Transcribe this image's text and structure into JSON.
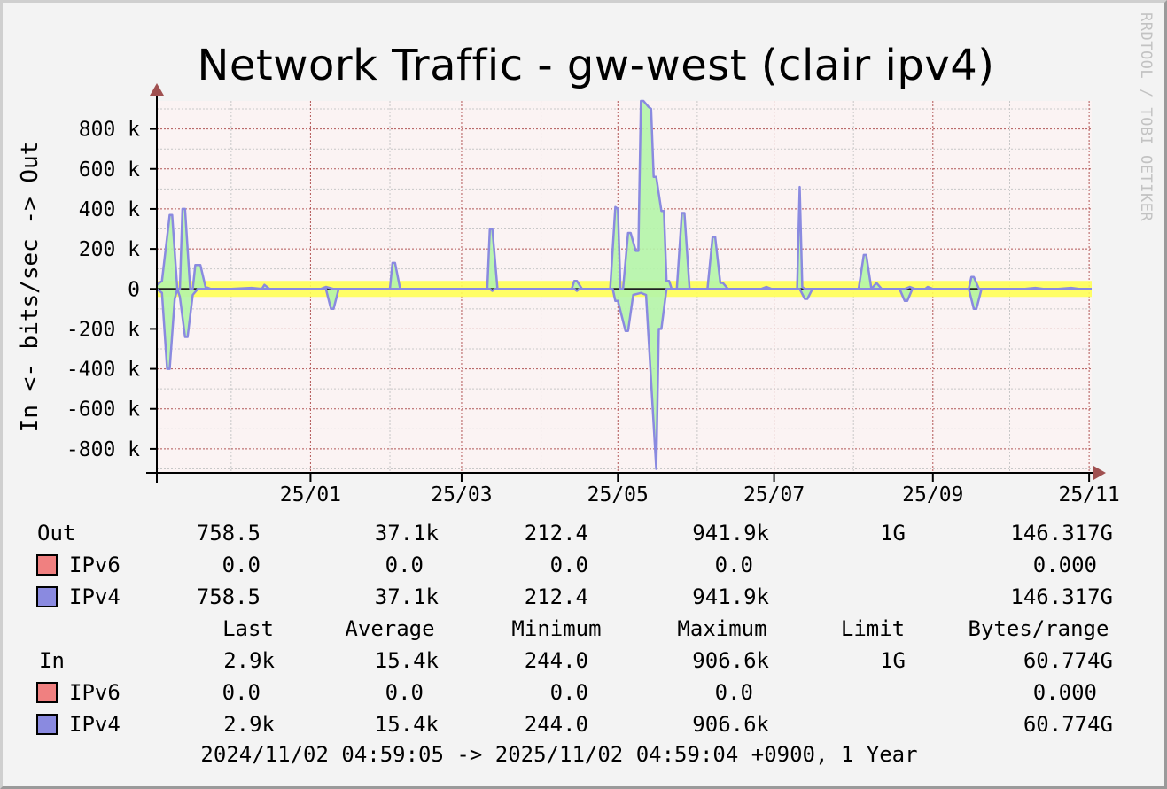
{
  "chart_data": {
    "type": "area",
    "title": "Network Traffic - gw-west (clair ipv4)",
    "ylabel": "In <- bits/sec -> Out",
    "ylim": [
      -920000,
      940000
    ],
    "y_ticks": [
      {
        "value": 800000,
        "label": "800 k"
      },
      {
        "value": 600000,
        "label": "600 k"
      },
      {
        "value": 400000,
        "label": "400 k"
      },
      {
        "value": 200000,
        "label": "200 k"
      },
      {
        "value": 0,
        "label": "0"
      },
      {
        "value": -200000,
        "label": "-200 k"
      },
      {
        "value": -400000,
        "label": "-400 k"
      },
      {
        "value": -600000,
        "label": "-600 k"
      },
      {
        "value": -800000,
        "label": "-800 k"
      }
    ],
    "x_range": [
      "2024-11-02",
      "2025-11-02"
    ],
    "x_ticks": [
      {
        "date": "2025-01-01",
        "label": "25/01"
      },
      {
        "date": "2025-03-01",
        "label": "25/03"
      },
      {
        "date": "2025-05-01",
        "label": "25/05"
      },
      {
        "date": "2025-07-01",
        "label": "25/07"
      },
      {
        "date": "2025-09-01",
        "label": "25/09"
      },
      {
        "date": "2025-11-01",
        "label": "25/11"
      }
    ],
    "grid": true,
    "limit_band": 40000,
    "series": [
      {
        "name": "IPv4",
        "color": "#8a8ae0",
        "fill": "#b4f5a8",
        "out": [
          [
            "2024-11-02",
            20000
          ],
          [
            "2024-11-04",
            40000
          ],
          [
            "2024-11-07",
            370000
          ],
          [
            "2024-11-08",
            370000
          ],
          [
            "2024-11-10",
            0
          ],
          [
            "2024-11-11",
            0
          ],
          [
            "2024-11-12",
            400000
          ],
          [
            "2024-11-13",
            400000
          ],
          [
            "2024-11-15",
            0
          ],
          [
            "2024-11-16",
            0
          ],
          [
            "2024-11-17",
            120000
          ],
          [
            "2024-11-19",
            120000
          ],
          [
            "2024-11-21",
            10000
          ],
          [
            "2024-11-23",
            0
          ],
          [
            "2024-12-01",
            0
          ],
          [
            "2024-12-09",
            5000
          ],
          [
            "2024-12-13",
            0
          ],
          [
            "2024-12-14",
            20000
          ],
          [
            "2024-12-16",
            0
          ],
          [
            "2025-01-02",
            0
          ],
          [
            "2025-01-05",
            0
          ],
          [
            "2025-01-07",
            10000
          ],
          [
            "2025-01-10",
            0
          ],
          [
            "2025-02-01",
            0
          ],
          [
            "2025-02-02",
            130000
          ],
          [
            "2025-02-03",
            130000
          ],
          [
            "2025-02-05",
            0
          ],
          [
            "2025-03-01",
            0
          ],
          [
            "2025-03-11",
            0
          ],
          [
            "2025-03-12",
            300000
          ],
          [
            "2025-03-13",
            300000
          ],
          [
            "2025-03-15",
            0
          ],
          [
            "2025-04-13",
            0
          ],
          [
            "2025-04-14",
            40000
          ],
          [
            "2025-04-15",
            40000
          ],
          [
            "2025-04-17",
            0
          ],
          [
            "2025-04-28",
            0
          ],
          [
            "2025-04-30",
            410000
          ],
          [
            "2025-05-01",
            400000
          ],
          [
            "2025-05-02",
            0
          ],
          [
            "2025-05-03",
            0
          ],
          [
            "2025-05-05",
            280000
          ],
          [
            "2025-05-06",
            280000
          ],
          [
            "2025-05-08",
            190000
          ],
          [
            "2025-05-09",
            190000
          ],
          [
            "2025-05-10",
            940000
          ],
          [
            "2025-05-11",
            940000
          ],
          [
            "2025-05-13",
            910000
          ],
          [
            "2025-05-14",
            900000
          ],
          [
            "2025-05-15",
            560000
          ],
          [
            "2025-05-16",
            560000
          ],
          [
            "2025-05-18",
            390000
          ],
          [
            "2025-05-19",
            390000
          ],
          [
            "2025-05-20",
            40000
          ],
          [
            "2025-05-21",
            40000
          ],
          [
            "2025-05-22",
            0
          ],
          [
            "2025-05-24",
            0
          ],
          [
            "2025-05-26",
            380000
          ],
          [
            "2025-05-27",
            380000
          ],
          [
            "2025-05-29",
            0
          ],
          [
            "2025-06-01",
            0
          ],
          [
            "2025-06-05",
            0
          ],
          [
            "2025-06-07",
            260000
          ],
          [
            "2025-06-08",
            260000
          ],
          [
            "2025-06-10",
            30000
          ],
          [
            "2025-06-11",
            30000
          ],
          [
            "2025-06-13",
            0
          ],
          [
            "2025-06-26",
            0
          ],
          [
            "2025-06-28",
            10000
          ],
          [
            "2025-06-30",
            0
          ],
          [
            "2025-07-10",
            0
          ],
          [
            "2025-07-11",
            510000
          ],
          [
            "2025-07-12",
            10000
          ],
          [
            "2025-07-13",
            0
          ],
          [
            "2025-08-01",
            0
          ],
          [
            "2025-08-03",
            0
          ],
          [
            "2025-08-05",
            170000
          ],
          [
            "2025-08-06",
            170000
          ],
          [
            "2025-08-08",
            0
          ],
          [
            "2025-08-10",
            30000
          ],
          [
            "2025-08-12",
            0
          ],
          [
            "2025-08-21",
            0
          ],
          [
            "2025-08-23",
            10000
          ],
          [
            "2025-08-25",
            0
          ],
          [
            "2025-08-29",
            0
          ],
          [
            "2025-08-30",
            10000
          ],
          [
            "2025-09-01",
            0
          ],
          [
            "2025-09-15",
            0
          ],
          [
            "2025-09-16",
            60000
          ],
          [
            "2025-09-17",
            60000
          ],
          [
            "2025-09-19",
            0
          ],
          [
            "2025-10-02",
            0
          ],
          [
            "2025-10-07",
            0
          ],
          [
            "2025-10-11",
            5000
          ],
          [
            "2025-10-14",
            0
          ],
          [
            "2025-10-20",
            0
          ],
          [
            "2025-10-25",
            5000
          ],
          [
            "2025-10-28",
            0
          ],
          [
            "2025-11-02",
            0
          ]
        ],
        "in": [
          [
            "2024-11-02",
            0
          ],
          [
            "2024-11-04",
            -20000
          ],
          [
            "2024-11-06",
            -400000
          ],
          [
            "2024-11-07",
            -400000
          ],
          [
            "2024-11-09",
            -50000
          ],
          [
            "2024-11-10",
            0
          ],
          [
            "2024-11-11",
            -40000
          ],
          [
            "2024-11-13",
            -240000
          ],
          [
            "2024-11-14",
            -240000
          ],
          [
            "2024-11-16",
            -30000
          ],
          [
            "2024-11-18",
            0
          ],
          [
            "2025-01-07",
            0
          ],
          [
            "2025-01-09",
            -100000
          ],
          [
            "2025-01-10",
            -100000
          ],
          [
            "2025-01-12",
            0
          ],
          [
            "2025-03-12",
            0
          ],
          [
            "2025-03-13",
            -10000
          ],
          [
            "2025-03-14",
            0
          ],
          [
            "2025-04-14",
            0
          ],
          [
            "2025-04-15",
            -10000
          ],
          [
            "2025-04-16",
            0
          ],
          [
            "2025-04-29",
            0
          ],
          [
            "2025-04-30",
            -60000
          ],
          [
            "2025-05-01",
            -60000
          ],
          [
            "2025-05-04",
            -210000
          ],
          [
            "2025-05-05",
            -210000
          ],
          [
            "2025-05-07",
            -30000
          ],
          [
            "2025-05-10",
            -20000
          ],
          [
            "2025-05-12",
            -30000
          ],
          [
            "2025-05-16",
            -900000
          ],
          [
            "2025-05-17",
            -200000
          ],
          [
            "2025-05-18",
            -200000
          ],
          [
            "2025-05-20",
            0
          ],
          [
            "2025-07-11",
            0
          ],
          [
            "2025-07-13",
            -50000
          ],
          [
            "2025-07-14",
            -50000
          ],
          [
            "2025-07-16",
            0
          ],
          [
            "2025-08-19",
            0
          ],
          [
            "2025-08-21",
            -60000
          ],
          [
            "2025-08-22",
            -60000
          ],
          [
            "2025-08-24",
            0
          ],
          [
            "2025-09-15",
            0
          ],
          [
            "2025-09-17",
            -100000
          ],
          [
            "2025-09-18",
            -100000
          ],
          [
            "2025-09-20",
            0
          ],
          [
            "2025-11-02",
            0
          ]
        ]
      },
      {
        "name": "IPv6",
        "color": "#f08080"
      }
    ]
  },
  "legend": {
    "out_label": "Out",
    "in_label": "In",
    "headers": [
      "Last",
      "Average",
      "Minimum",
      "Maximum",
      "Limit",
      "Bytes/range"
    ],
    "out_rows": [
      {
        "label": "Out",
        "values": [
          "758.5",
          "37.1k",
          "212.4",
          "941.9k",
          "1G",
          "146.317G"
        ]
      },
      {
        "label": "IPv6",
        "color": "#f08080",
        "values": [
          "0.0",
          "0.0",
          "0.0",
          "0.0",
          "",
          "0.000"
        ]
      },
      {
        "label": "IPv4",
        "color": "#8a8ae0",
        "values": [
          "758.5",
          "37.1k",
          "212.4",
          "941.9k",
          "",
          "146.317G"
        ]
      }
    ],
    "in_rows": [
      {
        "label": "In",
        "values": [
          "2.9k",
          "15.4k",
          "244.0",
          "906.6k",
          "1G",
          "60.774G"
        ]
      },
      {
        "label": "IPv6",
        "color": "#f08080",
        "values": [
          "0.0",
          "0.0",
          "0.0",
          "0.0",
          "",
          "0.000"
        ]
      },
      {
        "label": "IPv4",
        "color": "#8a8ae0",
        "values": [
          "2.9k",
          "15.4k",
          "244.0",
          "906.6k",
          "",
          "60.774G"
        ]
      }
    ]
  },
  "footer": "2024/11/02 04:59:05 -> 2025/11/02 04:59:04 +0900, 1 Year",
  "watermark": "RRDTOOL / TOBI OETIKER"
}
